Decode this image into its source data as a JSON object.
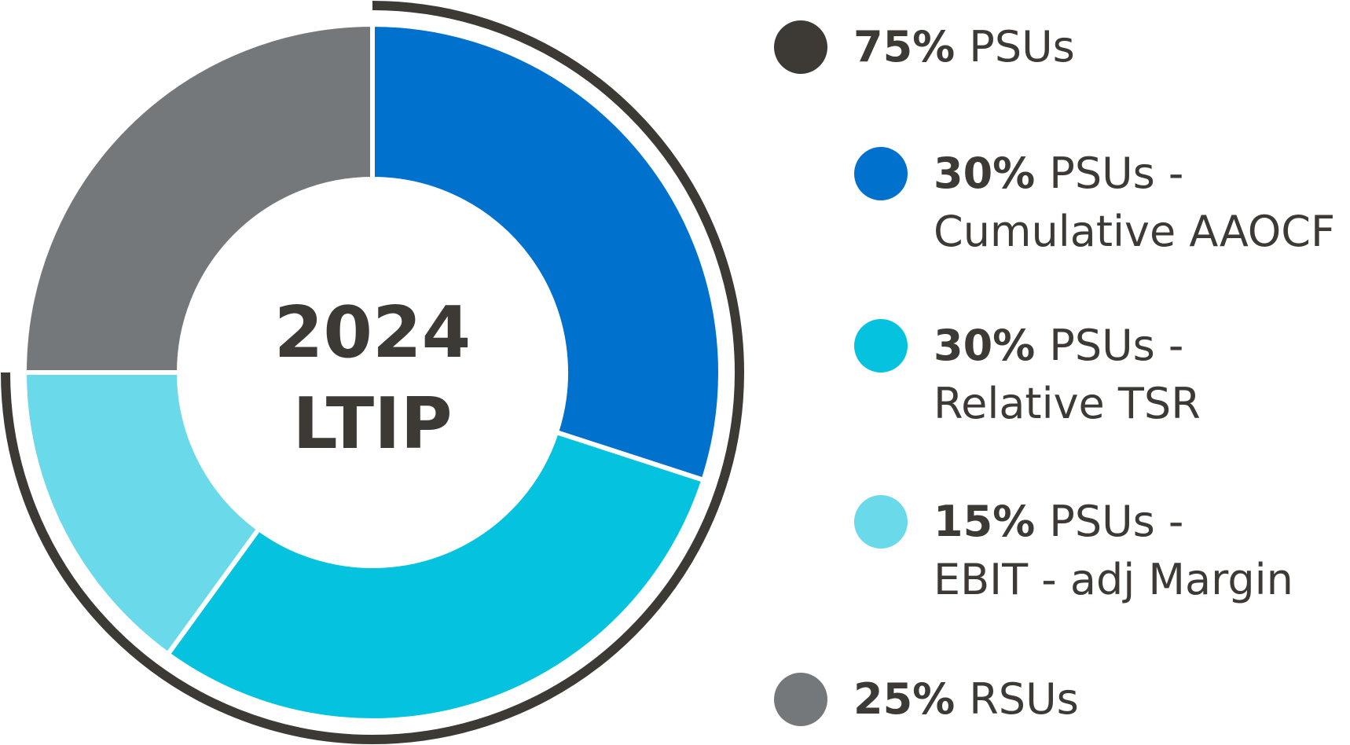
{
  "chart_data": {
    "type": "pie",
    "title": "2024 LTIP",
    "title_lines": [
      "2024",
      "LTIP"
    ],
    "slices": [
      {
        "label": "30% PSUs - Cumulative AAOCF",
        "value": 30,
        "color": "#0072ce"
      },
      {
        "label": "30% PSUs - Relative TSR",
        "value": 30,
        "color": "#05c3de"
      },
      {
        "label": "15% PSUs - EBIT - adj Margin",
        "value": 15,
        "color": "#6ad9ea"
      },
      {
        "label": "25% RSUs",
        "value": 25,
        "color": "#75787b"
      }
    ],
    "groups": [
      {
        "label": "75% PSUs",
        "value": 75,
        "color": "#3d3935"
      }
    ],
    "legend": [
      {
        "pct": "75%",
        "lines": [
          "PSUs"
        ],
        "color": "#3d3935"
      },
      {
        "pct": "30%",
        "lines": [
          "PSUs -",
          "Cumulative AAOCF"
        ],
        "color": "#0072ce"
      },
      {
        "pct": "30%",
        "lines": [
          "PSUs -",
          "Relative TSR"
        ],
        "color": "#05c3de"
      },
      {
        "pct": "15%",
        "lines": [
          "PSUs -",
          "EBIT - adj Margin"
        ],
        "color": "#6ad9ea"
      },
      {
        "pct": "25%",
        "lines": [
          "RSUs"
        ],
        "color": "#75787b"
      }
    ],
    "legend_placement": "right",
    "text_color": "#3d3935"
  }
}
